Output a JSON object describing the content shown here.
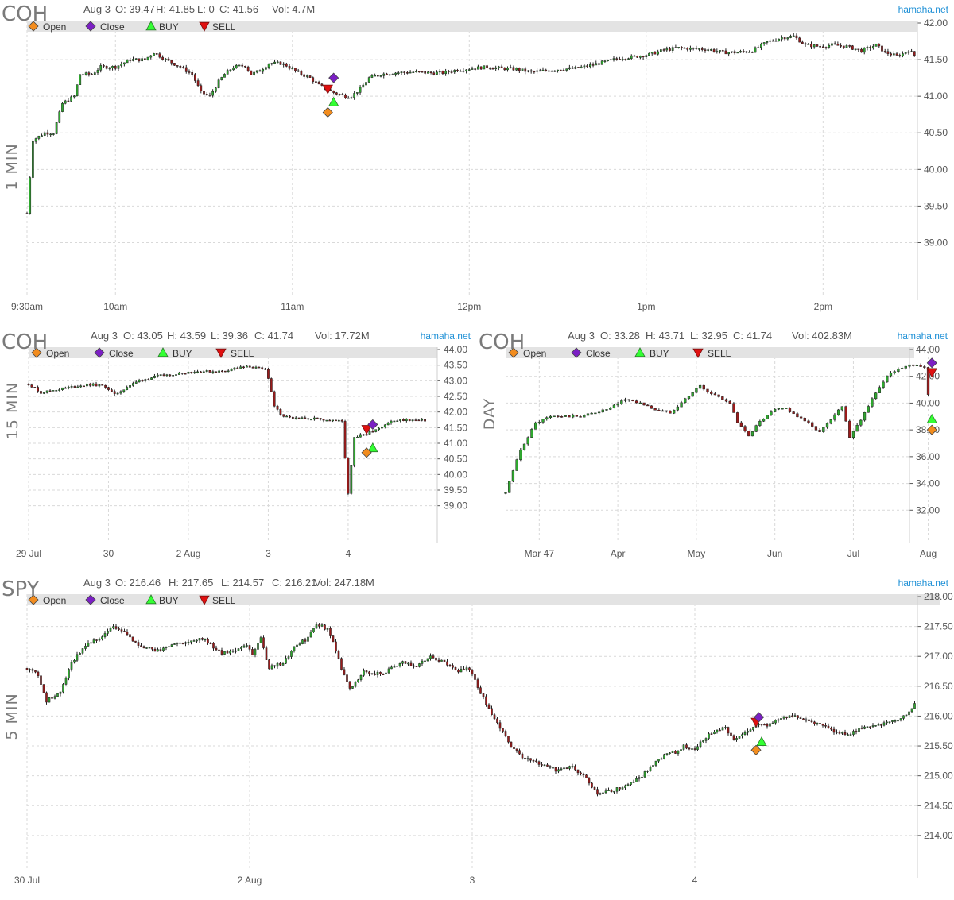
{
  "legend": {
    "open_label": "Open",
    "close_label": "Close",
    "buy_label": "BUY",
    "sell_label": "SELL",
    "open_color": "#f28c1e",
    "close_color": "#7b1fc4",
    "buy_color": "#33ff33",
    "sell_color": "#e01010"
  },
  "brand": "hamaha.net",
  "candle_colors": {
    "up": "#2fa82f",
    "down": "#9b1b1b",
    "flat": "#222222"
  },
  "chart_data": [
    {
      "type": "candlestick",
      "symbol": "COH",
      "period_label": "1 MIN",
      "info": {
        "date": "Aug 3",
        "o": "O: 39.47",
        "h": "H: 41.85",
        "l": "L: 0",
        "c": "C: 41.56",
        "vol": "Vol: 4.7M"
      },
      "ylim": [
        38.3,
        42.0
      ],
      "yticks": [
        "42.00",
        "41.50",
        "41.00",
        "40.50",
        "40.00",
        "39.50",
        "39.00"
      ],
      "xlim": [
        0,
        302
      ],
      "xticks": [
        {
          "pos": 0,
          "label": "9:30am"
        },
        {
          "pos": 30,
          "label": "10am"
        },
        {
          "pos": 90,
          "label": "11am"
        },
        {
          "pos": 150,
          "label": "12pm"
        },
        {
          "pos": 210,
          "label": "1pm"
        },
        {
          "pos": 270,
          "label": "2pm"
        }
      ],
      "n": 302,
      "path": [
        [
          0,
          39.4
        ],
        [
          2,
          40.4
        ],
        [
          6,
          40.5
        ],
        [
          9,
          40.5
        ],
        [
          12,
          40.9
        ],
        [
          16,
          41.0
        ],
        [
          18,
          41.3
        ],
        [
          22,
          41.3
        ],
        [
          25,
          41.4
        ],
        [
          30,
          41.4
        ],
        [
          35,
          41.5
        ],
        [
          40,
          41.5
        ],
        [
          43,
          41.6
        ],
        [
          47,
          41.5
        ],
        [
          52,
          41.4
        ],
        [
          56,
          41.3
        ],
        [
          59,
          41.05
        ],
        [
          62,
          41.0
        ],
        [
          65,
          41.2
        ],
        [
          67,
          41.3
        ],
        [
          70,
          41.4
        ],
        [
          74,
          41.42
        ],
        [
          76,
          41.3
        ],
        [
          79,
          41.35
        ],
        [
          82,
          41.45
        ],
        [
          86,
          41.45
        ],
        [
          88,
          41.42
        ],
        [
          92,
          41.32
        ],
        [
          96,
          41.25
        ],
        [
          99,
          41.15
        ],
        [
          104,
          41.05
        ],
        [
          108,
          41.0
        ],
        [
          110,
          41.0
        ],
        [
          113,
          41.1
        ],
        [
          116,
          41.25
        ],
        [
          120,
          41.3
        ],
        [
          125,
          41.32
        ],
        [
          131,
          41.33
        ],
        [
          136,
          41.32
        ],
        [
          141,
          41.32
        ],
        [
          146,
          41.36
        ],
        [
          151,
          41.38
        ],
        [
          156,
          41.4
        ],
        [
          161,
          41.38
        ],
        [
          166,
          41.37
        ],
        [
          171,
          41.33
        ],
        [
          176,
          41.35
        ],
        [
          181,
          41.37
        ],
        [
          186,
          41.38
        ],
        [
          191,
          41.42
        ],
        [
          196,
          41.47
        ],
        [
          201,
          41.52
        ],
        [
          206,
          41.54
        ],
        [
          211,
          41.57
        ],
        [
          216,
          41.63
        ],
        [
          221,
          41.66
        ],
        [
          226,
          41.65
        ],
        [
          231,
          41.64
        ],
        [
          236,
          41.6
        ],
        [
          241,
          41.6
        ],
        [
          246,
          41.62
        ],
        [
          251,
          41.74
        ],
        [
          256,
          41.8
        ],
        [
          260,
          41.82
        ],
        [
          264,
          41.7
        ],
        [
          269,
          41.68
        ],
        [
          273,
          41.7
        ],
        [
          278,
          41.68
        ],
        [
          283,
          41.62
        ],
        [
          288,
          41.7
        ],
        [
          291,
          41.6
        ],
        [
          295,
          41.55
        ],
        [
          297,
          41.58
        ],
        [
          299,
          41.63
        ],
        [
          301,
          41.56
        ]
      ],
      "markers": [
        {
          "kind": "sell",
          "x": 102,
          "y": 41.1
        },
        {
          "kind": "close",
          "x": 104,
          "y": 41.25
        },
        {
          "kind": "buy",
          "x": 104,
          "y": 40.92
        },
        {
          "kind": "open",
          "x": 102,
          "y": 40.78
        }
      ]
    },
    {
      "type": "candlestick",
      "symbol": "COH",
      "period_label": "15 MIN",
      "info": {
        "date": "Aug 3",
        "o": "O: 43.05",
        "h": "H: 43.59",
        "l": "L: 39.36",
        "c": "C: 41.74",
        "vol": "Vol: 17.72M"
      },
      "ylim": [
        38.0,
        44.0
      ],
      "yticks": [
        "44.00",
        "43.50",
        "43.00",
        "42.50",
        "42.00",
        "41.50",
        "41.00",
        "40.50",
        "40.00",
        "39.50",
        "39.00"
      ],
      "xlim": [
        0,
        133
      ],
      "xticks": [
        {
          "pos": 0,
          "label": "29 Jul"
        },
        {
          "pos": 26,
          "label": "30"
        },
        {
          "pos": 52,
          "label": "2 Aug"
        },
        {
          "pos": 78,
          "label": "3"
        },
        {
          "pos": 104,
          "label": "4"
        }
      ],
      "n": 130,
      "path": [
        [
          0,
          42.9
        ],
        [
          4,
          42.62
        ],
        [
          8,
          42.7
        ],
        [
          14,
          42.8
        ],
        [
          20,
          42.88
        ],
        [
          25,
          42.82
        ],
        [
          28,
          42.55
        ],
        [
          32,
          42.8
        ],
        [
          36,
          43.0
        ],
        [
          42,
          43.15
        ],
        [
          48,
          43.22
        ],
        [
          52,
          43.28
        ],
        [
          57,
          43.3
        ],
        [
          63,
          43.3
        ],
        [
          67,
          43.4
        ],
        [
          72,
          43.45
        ],
        [
          77,
          43.35
        ],
        [
          78,
          43.1
        ],
        [
          80,
          42.2
        ],
        [
          82,
          41.9
        ],
        [
          86,
          41.78
        ],
        [
          92,
          41.8
        ],
        [
          98,
          41.75
        ],
        [
          102,
          41.7
        ],
        [
          104,
          39.4
        ],
        [
          106,
          41.2
        ],
        [
          110,
          41.3
        ],
        [
          113,
          41.45
        ],
        [
          118,
          41.7
        ],
        [
          123,
          41.75
        ],
        [
          128,
          41.72
        ],
        [
          130,
          41.74
        ]
      ],
      "markers": [
        {
          "kind": "sell",
          "x": 110,
          "y": 41.45
        },
        {
          "kind": "close",
          "x": 112,
          "y": 41.6
        },
        {
          "kind": "buy",
          "x": 112,
          "y": 40.85
        },
        {
          "kind": "open",
          "x": 110,
          "y": 40.7
        }
      ]
    },
    {
      "type": "candlestick",
      "symbol": "COH",
      "period_label": "DAY",
      "info": {
        "date": "Aug 3",
        "o": "O: 33.28",
        "h": "H: 43.71",
        "l": "L: 32.95",
        "c": "C: 41.74",
        "vol": "Vol: 402.83M"
      },
      "ylim": [
        30.0,
        44.0
      ],
      "yticks": [
        "44.00",
        "42.00",
        "40.00",
        "38.00",
        "36.00",
        "34.00",
        "32.00"
      ],
      "xlim": [
        0,
        108
      ],
      "xticks": [
        {
          "pos": 9,
          "label": "Mar 47"
        },
        {
          "pos": 30,
          "label": "Apr"
        },
        {
          "pos": 51,
          "label": "May"
        },
        {
          "pos": 72,
          "label": "Jun"
        },
        {
          "pos": 93,
          "label": "Jul"
        },
        {
          "pos": 113,
          "label": "Aug"
        }
      ],
      "n": 114,
      "path": [
        [
          0,
          33.3
        ],
        [
          4,
          36.5
        ],
        [
          8,
          38.5
        ],
        [
          12,
          39.0
        ],
        [
          16,
          39.0
        ],
        [
          20,
          39.0
        ],
        [
          24,
          39.3
        ],
        [
          28,
          39.6
        ],
        [
          32,
          40.3
        ],
        [
          36,
          40.0
        ],
        [
          40,
          39.5
        ],
        [
          44,
          39.3
        ],
        [
          48,
          40.3
        ],
        [
          52,
          41.3
        ],
        [
          54,
          40.8
        ],
        [
          57,
          40.5
        ],
        [
          60,
          40.0
        ],
        [
          62,
          38.5
        ],
        [
          65,
          37.6
        ],
        [
          68,
          38.6
        ],
        [
          72,
          39.5
        ],
        [
          75,
          39.6
        ],
        [
          78,
          39.0
        ],
        [
          82,
          38.3
        ],
        [
          84,
          37.8
        ],
        [
          86,
          38.5
        ],
        [
          90,
          39.8
        ],
        [
          92,
          37.5
        ],
        [
          95,
          38.8
        ],
        [
          99,
          40.8
        ],
        [
          102,
          42.0
        ],
        [
          105,
          42.6
        ],
        [
          108,
          42.8
        ],
        [
          111,
          42.8
        ],
        [
          112,
          42.6
        ],
        [
          114,
          38.6
        ],
        [
          114,
          41.74
        ]
      ],
      "markers": [
        {
          "kind": "sell",
          "x": 114,
          "y": 42.3
        },
        {
          "kind": "close",
          "x": 114,
          "y": 43.0
        },
        {
          "kind": "buy",
          "x": 114,
          "y": 38.8
        },
        {
          "kind": "open",
          "x": 114,
          "y": 38.0
        }
      ]
    },
    {
      "type": "candlestick",
      "symbol": "SPY",
      "period_label": "5 MIN",
      "info": {
        "date": "Aug 3",
        "o": "O: 216.46",
        "h": "H: 217.65",
        "l": "L: 214.57",
        "c": "C: 216.21",
        "vol": "Vol: 247.18M"
      },
      "ylim": [
        213.4,
        218.0
      ],
      "yticks": [
        "218.00",
        "217.50",
        "217.00",
        "216.50",
        "216.00",
        "215.50",
        "215.00",
        "214.50",
        "214.00"
      ],
      "xlim": [
        0,
        320
      ],
      "xticks": [
        {
          "pos": 0,
          "label": "30 Jul"
        },
        {
          "pos": 80,
          "label": "2 Aug"
        },
        {
          "pos": 160,
          "label": "3"
        },
        {
          "pos": 240,
          "label": "4"
        }
      ],
      "n": 320,
      "path": [
        [
          0,
          216.8
        ],
        [
          4,
          216.7
        ],
        [
          7,
          216.25
        ],
        [
          12,
          216.4
        ],
        [
          16,
          216.9
        ],
        [
          21,
          217.2
        ],
        [
          26,
          217.3
        ],
        [
          31,
          217.5
        ],
        [
          35,
          217.4
        ],
        [
          41,
          217.15
        ],
        [
          47,
          217.1
        ],
        [
          53,
          217.2
        ],
        [
          58,
          217.25
        ],
        [
          63,
          217.3
        ],
        [
          66,
          217.2
        ],
        [
          70,
          217.05
        ],
        [
          75,
          217.1
        ],
        [
          79,
          217.2
        ],
        [
          81,
          217.0
        ],
        [
          84,
          217.3
        ],
        [
          87,
          216.8
        ],
        [
          92,
          216.9
        ],
        [
          97,
          217.2
        ],
        [
          101,
          217.3
        ],
        [
          104,
          217.55
        ],
        [
          108,
          217.45
        ],
        [
          111,
          217.1
        ],
        [
          113,
          216.8
        ],
        [
          116,
          216.45
        ],
        [
          121,
          216.75
        ],
        [
          127,
          216.7
        ],
        [
          131,
          216.8
        ],
        [
          135,
          216.9
        ],
        [
          140,
          216.85
        ],
        [
          145,
          217.0
        ],
        [
          150,
          216.9
        ],
        [
          155,
          216.75
        ],
        [
          159,
          216.8
        ],
        [
          161,
          216.6
        ],
        [
          165,
          216.2
        ],
        [
          169,
          215.9
        ],
        [
          174,
          215.5
        ],
        [
          178,
          215.3
        ],
        [
          184,
          215.2
        ],
        [
          190,
          215.1
        ],
        [
          196,
          215.15
        ],
        [
          201,
          214.95
        ],
        [
          205,
          214.7
        ],
        [
          210,
          214.75
        ],
        [
          216,
          214.85
        ],
        [
          221,
          215.0
        ],
        [
          224,
          215.15
        ],
        [
          229,
          215.35
        ],
        [
          233,
          215.4
        ],
        [
          236,
          215.5
        ],
        [
          240,
          215.45
        ],
        [
          245,
          215.7
        ],
        [
          251,
          215.8
        ],
        [
          254,
          215.6
        ],
        [
          258,
          215.7
        ],
        [
          262,
          215.85
        ],
        [
          266,
          215.85
        ],
        [
          270,
          215.95
        ],
        [
          275,
          216.0
        ],
        [
          280,
          215.95
        ],
        [
          285,
          215.85
        ],
        [
          290,
          215.75
        ],
        [
          296,
          215.7
        ],
        [
          300,
          215.8
        ],
        [
          305,
          215.85
        ],
        [
          310,
          215.9
        ],
        [
          314,
          215.95
        ],
        [
          317,
          216.05
        ],
        [
          319,
          216.21
        ]
      ],
      "markers": [
        {
          "kind": "sell",
          "x": 262,
          "y": 215.9
        },
        {
          "kind": "close",
          "x": 263,
          "y": 215.98
        },
        {
          "kind": "buy",
          "x": 264,
          "y": 215.57
        },
        {
          "kind": "open",
          "x": 262,
          "y": 215.43
        }
      ]
    }
  ]
}
